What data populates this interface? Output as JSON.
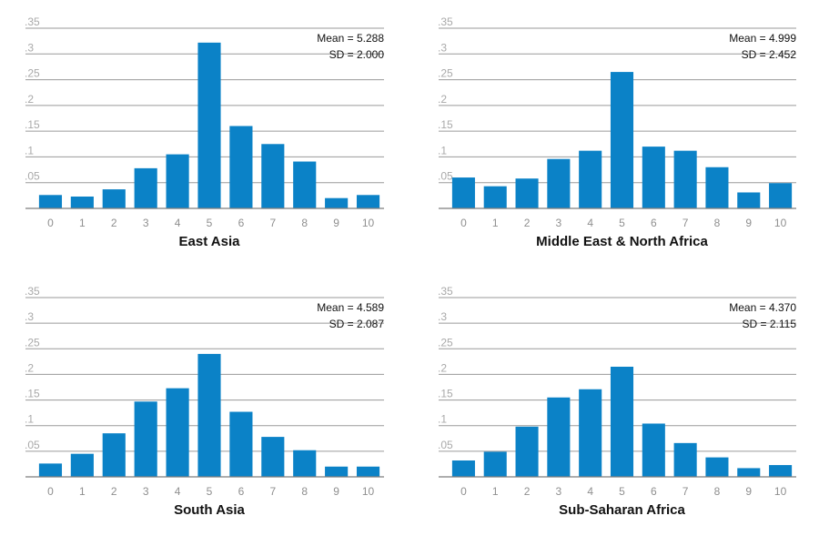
{
  "colors": {
    "bar": "#0B82C7",
    "grid": "#9a9a9a",
    "axis": "#7d7d7d"
  },
  "chart_data": [
    {
      "type": "bar",
      "title": "East Asia",
      "categories": [
        "0",
        "1",
        "2",
        "3",
        "4",
        "5",
        "6",
        "7",
        "8",
        "9",
        "10"
      ],
      "values": [
        0.026,
        0.023,
        0.037,
        0.078,
        0.105,
        0.322,
        0.16,
        0.125,
        0.091,
        0.02,
        0.026
      ],
      "yticks": [
        0.05,
        0.1,
        0.15,
        0.2,
        0.25,
        0.3,
        0.35
      ],
      "ytick_labels": [
        ".05",
        ".1",
        ".15",
        ".2",
        ".25",
        ".3",
        ".35"
      ],
      "ylim": [
        0,
        0.35
      ],
      "mean_label": "Mean = 5.288",
      "sd_label": "SD = 2.000",
      "xlabel": "",
      "ylabel": ""
    },
    {
      "type": "bar",
      "title": "Middle East & North Africa",
      "categories": [
        "0",
        "1",
        "2",
        "3",
        "4",
        "5",
        "6",
        "7",
        "8",
        "9",
        "10"
      ],
      "values": [
        0.06,
        0.043,
        0.058,
        0.096,
        0.112,
        0.265,
        0.12,
        0.112,
        0.08,
        0.031,
        0.049
      ],
      "yticks": [
        0.05,
        0.1,
        0.15,
        0.2,
        0.25,
        0.3,
        0.35
      ],
      "ytick_labels": [
        ".05",
        ".1",
        ".15",
        ".2",
        ".25",
        ".3",
        ".35"
      ],
      "ylim": [
        0,
        0.35
      ],
      "mean_label": "Mean = 4.999",
      "sd_label": "SD = 2.452",
      "xlabel": "",
      "ylabel": ""
    },
    {
      "type": "bar",
      "title": "South Asia",
      "categories": [
        "0",
        "1",
        "2",
        "3",
        "4",
        "5",
        "6",
        "7",
        "8",
        "9",
        "10"
      ],
      "values": [
        0.026,
        0.045,
        0.085,
        0.147,
        0.173,
        0.24,
        0.127,
        0.078,
        0.052,
        0.02,
        0.02
      ],
      "yticks": [
        0.05,
        0.1,
        0.15,
        0.2,
        0.25,
        0.3,
        0.35
      ],
      "ytick_labels": [
        ".05",
        ".1",
        ".15",
        ".2",
        ".25",
        ".3",
        ".35"
      ],
      "ylim": [
        0,
        0.35
      ],
      "mean_label": "Mean = 4.589",
      "sd_label": "SD = 2.087",
      "xlabel": "",
      "ylabel": ""
    },
    {
      "type": "bar",
      "title": "Sub-Saharan Africa",
      "categories": [
        "0",
        "1",
        "2",
        "3",
        "4",
        "5",
        "6",
        "7",
        "8",
        "9",
        "10"
      ],
      "values": [
        0.032,
        0.049,
        0.098,
        0.155,
        0.171,
        0.215,
        0.104,
        0.066,
        0.038,
        0.017,
        0.023
      ],
      "yticks": [
        0.05,
        0.1,
        0.15,
        0.2,
        0.25,
        0.3,
        0.35
      ],
      "ytick_labels": [
        ".05",
        ".1",
        ".15",
        ".2",
        ".25",
        ".3",
        ".35"
      ],
      "ylim": [
        0,
        0.35
      ],
      "mean_label": "Mean = 4.370",
      "sd_label": "SD = 2.115",
      "xlabel": "",
      "ylabel": ""
    }
  ]
}
